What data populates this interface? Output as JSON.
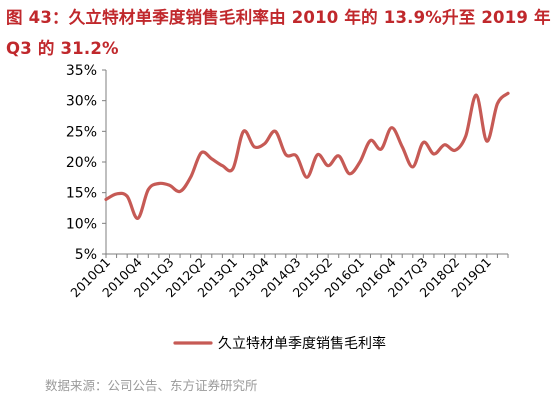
{
  "title": "图 43：久立特材单季度销售毛利率由 2010 年的 13.9%升至 2019 年 Q3 的 31.2%",
  "source": "数据来源：公司公告、东方证券研究所",
  "colors": {
    "title": "#c0282c",
    "series": "#c65a55",
    "axis": "#7f7f7f",
    "source": "#9a9a9a"
  },
  "chart_data": {
    "type": "line",
    "title": "图 43：久立特材单季度销售毛利率由 2010 年的 13.9%升至 2019 年 Q3 的 31.2%",
    "xlabel": "",
    "ylabel": "",
    "ylim": [
      5,
      35
    ],
    "yticks": [
      "5%",
      "10%",
      "15%",
      "20%",
      "25%",
      "30%",
      "35%"
    ],
    "ytick_values": [
      5,
      10,
      15,
      20,
      25,
      30,
      35
    ],
    "grid": false,
    "legend": "bottom",
    "x": [
      "2010Q1",
      "2010Q2",
      "2010Q3",
      "2010Q4",
      "2011Q1",
      "2011Q2",
      "2011Q3",
      "2011Q4",
      "2012Q1",
      "2012Q2",
      "2012Q3",
      "2012Q4",
      "2013Q1",
      "2013Q2",
      "2013Q3",
      "2013Q4",
      "2014Q1",
      "2014Q2",
      "2014Q3",
      "2014Q4",
      "2015Q1",
      "2015Q2",
      "2015Q3",
      "2015Q4",
      "2016Q1",
      "2016Q2",
      "2016Q3",
      "2016Q4",
      "2017Q1",
      "2017Q2",
      "2017Q3",
      "2017Q4",
      "2018Q1",
      "2018Q2",
      "2018Q3",
      "2018Q4",
      "2019Q1",
      "2019Q2",
      "2019Q3"
    ],
    "xtick_labels": [
      "2010Q1",
      "2010Q4",
      "2011Q3",
      "2012Q2",
      "2013Q1",
      "2013Q4",
      "2014Q3",
      "2015Q2",
      "2016Q1",
      "2016Q4",
      "2017Q3",
      "2018Q2",
      "2019Q1"
    ],
    "series": [
      {
        "name": "久立特材单季度销售毛利率",
        "color": "#c65a55",
        "values": [
          13.9,
          14.8,
          14.4,
          10.8,
          15.5,
          16.5,
          16.2,
          15.2,
          17.5,
          21.5,
          20.5,
          19.4,
          18.9,
          25.0,
          22.5,
          23.0,
          25.0,
          21.2,
          21.0,
          17.5,
          21.2,
          19.4,
          21.0,
          18.1,
          20.0,
          23.5,
          22.1,
          25.6,
          22.5,
          19.2,
          23.2,
          21.3,
          22.8,
          21.9,
          24.2,
          30.9,
          23.4,
          29.5,
          31.2
        ]
      }
    ]
  }
}
